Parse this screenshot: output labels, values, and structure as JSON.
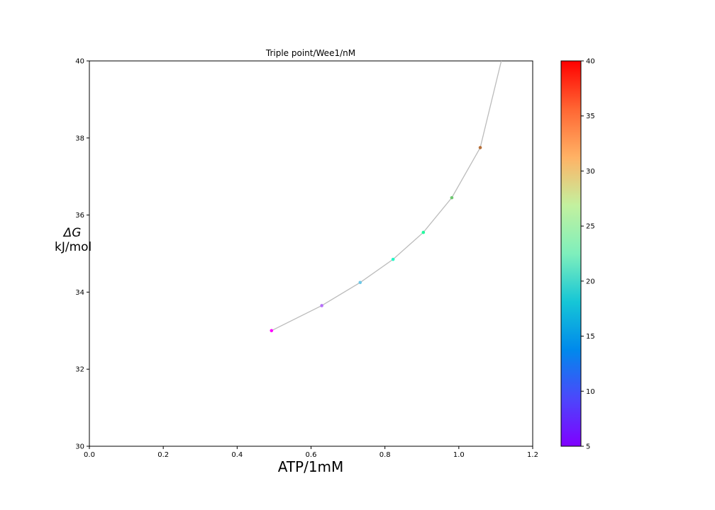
{
  "chart_data": {
    "type": "line",
    "title": "Triple point/Wee1/nM",
    "xlabel": "ATP/1mM",
    "ylabel_line1": "ΔG",
    "ylabel_line2": "kJ/mol",
    "xlim": [
      0.0,
      1.2
    ],
    "ylim": [
      30,
      40
    ],
    "x_ticks": [
      "0.0",
      "0.2",
      "0.4",
      "0.6",
      "0.8",
      "1.0",
      "1.2"
    ],
    "y_ticks": [
      "30",
      "32",
      "34",
      "36",
      "38",
      "40"
    ],
    "grid": false,
    "line_color": "#bbbbbb",
    "line": {
      "x": [
        0.493,
        0.629,
        0.733,
        0.822,
        0.904,
        0.981,
        1.058,
        1.115
      ],
      "y": [
        33.0,
        33.65,
        34.25,
        34.85,
        35.55,
        36.45,
        37.75,
        40.0
      ]
    },
    "points": [
      {
        "x": 0.493,
        "y": 33.0,
        "c": 5
      },
      {
        "x": 0.629,
        "y": 33.65,
        "c": 10
      },
      {
        "x": 0.733,
        "y": 34.25,
        "c": 15
      },
      {
        "x": 0.822,
        "y": 34.85,
        "c": 20
      },
      {
        "x": 0.904,
        "y": 35.55,
        "c": 25
      },
      {
        "x": 0.981,
        "y": 36.45,
        "c": 30
      },
      {
        "x": 1.058,
        "y": 37.75,
        "c": 35
      }
    ],
    "colorbar": {
      "colormap": "rainbow",
      "range": [
        5,
        40
      ],
      "ticks": [
        "5",
        "10",
        "15",
        "20",
        "25",
        "30",
        "35",
        "40"
      ]
    }
  }
}
